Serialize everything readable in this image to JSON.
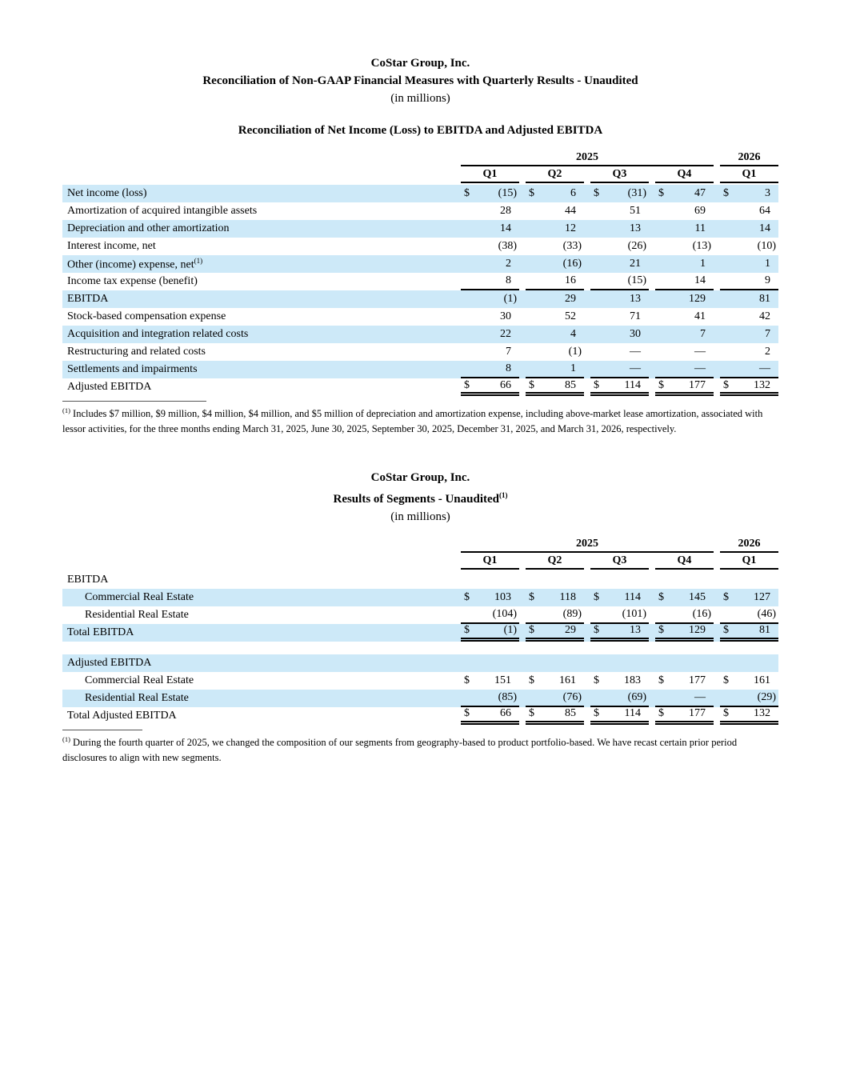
{
  "colors": {
    "highlight": "#cde9f8",
    "text": "#000000",
    "rule": "#000000"
  },
  "header1": {
    "company": "CoStar Group, Inc.",
    "title": "Reconciliation of Non-GAAP Financial Measures with Quarterly Results - Unaudited",
    "units": "(in millions)"
  },
  "table1": {
    "title": "Reconciliation of Net Income (Loss) to EBITDA and Adjusted EBITDA",
    "years": [
      {
        "label": "2025",
        "cols": 4
      },
      {
        "label": "2026",
        "cols": 1
      }
    ],
    "quarters": [
      "Q1",
      "Q2",
      "Q3",
      "Q4",
      "Q1"
    ],
    "rows": [
      {
        "label": "Net income (loss)",
        "shade": true,
        "dollar": true,
        "values": [
          "(15)",
          "6",
          "(31)",
          "47",
          "3"
        ]
      },
      {
        "label": "Amortization of acquired intangible assets",
        "shade": false,
        "dollar": false,
        "values": [
          "28",
          "44",
          "51",
          "69",
          "64"
        ]
      },
      {
        "label": "Depreciation and other amortization",
        "shade": true,
        "dollar": false,
        "values": [
          "14",
          "12",
          "13",
          "11",
          "14"
        ]
      },
      {
        "label": "Interest income, net",
        "shade": false,
        "dollar": false,
        "values": [
          "(38)",
          "(33)",
          "(26)",
          "(13)",
          "(10)"
        ]
      },
      {
        "label": "Other (income) expense, net",
        "sup": "(1)",
        "shade": true,
        "dollar": false,
        "values": [
          "2",
          "(16)",
          "21",
          "1",
          "1"
        ]
      },
      {
        "label": "Income tax expense (benefit)",
        "shade": false,
        "dollar": false,
        "underline": "single",
        "values": [
          "8",
          "16",
          "(15)",
          "14",
          "9"
        ]
      },
      {
        "label": "EBITDA",
        "shade": true,
        "dollar": false,
        "values": [
          "(1)",
          "29",
          "13",
          "129",
          "81"
        ]
      },
      {
        "label": "Stock-based compensation expense",
        "shade": false,
        "dollar": false,
        "values": [
          "30",
          "52",
          "71",
          "41",
          "42"
        ]
      },
      {
        "label": "Acquisition and integration related costs",
        "shade": true,
        "dollar": false,
        "values": [
          "22",
          "4",
          "30",
          "7",
          "7"
        ]
      },
      {
        "label": "Restructuring and related costs",
        "shade": false,
        "dollar": false,
        "values": [
          "7",
          "(1)",
          "—",
          "—",
          "2"
        ]
      },
      {
        "label": "Settlements and impairments",
        "shade": true,
        "dollar": false,
        "underline": "single",
        "values": [
          "8",
          "1",
          "—",
          "—",
          "—"
        ]
      },
      {
        "label": "Adjusted EBITDA",
        "shade": false,
        "dollar": true,
        "underline": "double",
        "values": [
          "66",
          "85",
          "114",
          "177",
          "132"
        ]
      }
    ],
    "footnote_marker": "(1)",
    "footnote": "Includes $7 million, $9 million, $4 million, $4 million, and $5 million of depreciation and amortization expense, including above-market lease amortization, associated with lessor activities, for the three months ending March 31, 2025, June 30, 2025, September 30, 2025, December 31, 2025, and March 31, 2026, respectively."
  },
  "header2": {
    "company": "CoStar Group, Inc.",
    "title": "Results of Segments - Unaudited",
    "title_sup": "(1)",
    "units": "(in millions)"
  },
  "table2": {
    "years": [
      {
        "label": "2025",
        "cols": 4
      },
      {
        "label": "2026",
        "cols": 1
      }
    ],
    "quarters": [
      "Q1",
      "Q2",
      "Q3",
      "Q4",
      "Q1"
    ],
    "rows": [
      {
        "label": "EBITDA",
        "shade": false,
        "header": true
      },
      {
        "label": "Commercial Real Estate",
        "indent": true,
        "shade": true,
        "dollar": true,
        "values": [
          "103",
          "118",
          "114",
          "145",
          "127"
        ]
      },
      {
        "label": "Residential Real Estate",
        "indent": true,
        "shade": false,
        "dollar": false,
        "underline": "single",
        "values": [
          "(104)",
          "(89)",
          "(101)",
          "(16)",
          "(46)"
        ]
      },
      {
        "label": "Total EBITDA",
        "shade": true,
        "dollar": true,
        "underline": "double",
        "values": [
          "(1)",
          "29",
          "13",
          "129",
          "81"
        ]
      },
      {
        "spacer": true
      },
      {
        "label": "Adjusted EBITDA",
        "shade": true,
        "header": true
      },
      {
        "label": "Commercial Real Estate",
        "indent": true,
        "shade": false,
        "dollar": true,
        "values": [
          "151",
          "161",
          "183",
          "177",
          "161"
        ]
      },
      {
        "label": "Residential Real Estate",
        "indent": true,
        "shade": true,
        "dollar": false,
        "underline": "single",
        "values": [
          "(85)",
          "(76)",
          "(69)",
          "—",
          "(29)"
        ]
      },
      {
        "label": "Total Adjusted EBITDA",
        "shade": false,
        "dollar": true,
        "underline": "double",
        "values": [
          "66",
          "85",
          "114",
          "177",
          "132"
        ]
      }
    ],
    "footnote_marker": "(1)",
    "footnote": "During the fourth quarter of 2025, we changed the composition of our segments from geography-based to product portfolio-based. We have recast certain prior period disclosures to align with new segments."
  }
}
